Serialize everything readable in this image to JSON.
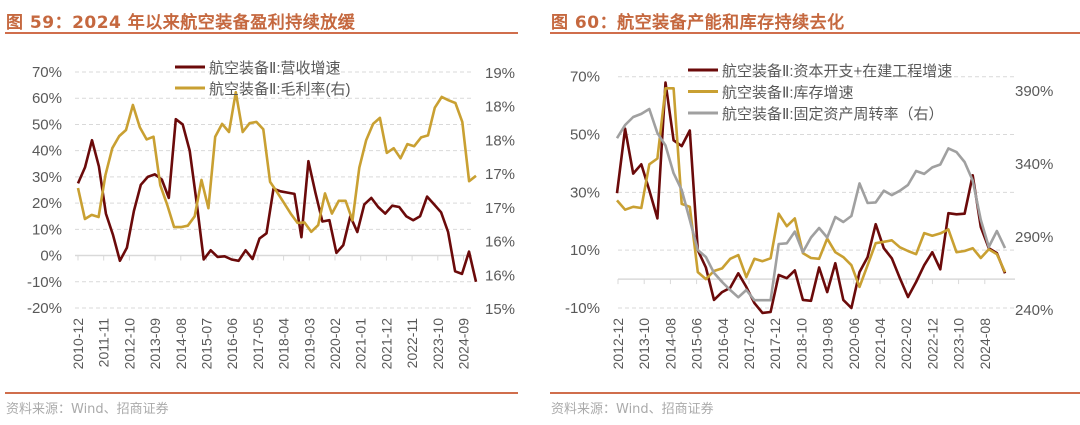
{
  "figures": [
    {
      "title": "图 59：2024 年以来航空装备盈利持续放缓",
      "source": "资料来源：Wind、招商证券"
    },
    {
      "title": "图 60：航空装备产能和库存持续去化",
      "source": "资料来源：Wind、招商证券"
    }
  ],
  "chart_data": [
    {
      "type": "line",
      "title": "图 59：2024 年以来航空装备盈利持续放缓",
      "x_tick_labels": [
        "2010-12",
        "2011-11",
        "2012-10",
        "2013-09",
        "2014-08",
        "2015-07",
        "2016-06",
        "2017-05",
        "2018-04",
        "2019-03",
        "2020-02",
        "2021-01",
        "2021-12",
        "2022-11",
        "2023-10",
        "2024-09"
      ],
      "y_left": {
        "range": [
          -20,
          70
        ],
        "ticks": [
          70,
          60,
          50,
          40,
          30,
          20,
          10,
          0,
          -10,
          -20
        ],
        "tick_labels": [
          "70%",
          "60%",
          "50%",
          "40%",
          "30%",
          "20%",
          "10%",
          "0%",
          "-10%",
          "-20%"
        ]
      },
      "y_right": {
        "range": [
          15.5,
          19
        ],
        "ticks": [
          19,
          18.5,
          18,
          17.5,
          17,
          16.5,
          16,
          15.5
        ],
        "tick_labels": [
          "19%",
          "18%",
          "18%",
          "17%",
          "17%",
          "16%",
          "16%",
          "15%"
        ]
      },
      "grid": true,
      "legend_position": "top-center",
      "series": [
        {
          "name": "航空装备Ⅱ:营收增速",
          "axis": "left",
          "color": "#6B0A0A",
          "values": [
            27.5,
            33.6,
            44,
            34,
            16,
            8,
            -2,
            3,
            17,
            27,
            30,
            31,
            29,
            22,
            52,
            50,
            40,
            20,
            -1.5,
            2,
            -0.5,
            -0.3,
            -1.5,
            -2,
            2,
            -1.3,
            6.5,
            8.5,
            25.5,
            24.5,
            24,
            23.5,
            7,
            36,
            24,
            13,
            13.5,
            1,
            4,
            15,
            9,
            19.5,
            22,
            18.5,
            16,
            19,
            18.5,
            15,
            13.5,
            15,
            22.5,
            19.5,
            16.5,
            9,
            -6,
            -7,
            1.5,
            -10
          ]
        },
        {
          "name": "航空装备Ⅱ:毛利率(右)",
          "axis": "right",
          "color": "#C9A032",
          "values": [
            17.28,
            16.82,
            16.88,
            16.85,
            17.47,
            17.87,
            18.05,
            18.14,
            18.51,
            18.18,
            18.0,
            18.04,
            17.32,
            17.03,
            16.7,
            16.7,
            16.72,
            16.86,
            17.4,
            16.98,
            18.04,
            18.23,
            18.11,
            18.7,
            18.11,
            18.24,
            18.26,
            18.15,
            17.37,
            17.22,
            17.06,
            16.9,
            16.76,
            16.77,
            16.63,
            16.73,
            17.2,
            16.9,
            17.09,
            17.09,
            16.8,
            17.58,
            17.99,
            18.23,
            18.32,
            17.8,
            17.87,
            17.72,
            17.93,
            17.9,
            18.03,
            18.06,
            18.47,
            18.63,
            18.58,
            18.54,
            18.26,
            17.38,
            17.46
          ]
        }
      ]
    },
    {
      "type": "line",
      "title": "图 60：航空装备产能和库存持续去化",
      "x_tick_labels": [
        "2012-12",
        "2013-10",
        "2014-08",
        "2015-06",
        "2016-04",
        "2017-02",
        "2017-12",
        "2018-10",
        "2019-08",
        "2020-06",
        "2021-04",
        "2022-02",
        "2022-12",
        "2023-10",
        "2024-08"
      ],
      "y_left": {
        "range": [
          -10,
          70
        ],
        "ticks": [
          70,
          50,
          30,
          10,
          -10
        ],
        "tick_labels": [
          "70%",
          "50%",
          "30%",
          "10%",
          "-10%"
        ]
      },
      "y_right": {
        "range": [
          240,
          390
        ],
        "ticks": [
          390,
          340,
          290,
          240
        ],
        "tick_labels": [
          "390%",
          "340%",
          "290%",
          "240%"
        ]
      },
      "grid": true,
      "legend_position": "top-center",
      "series": [
        {
          "name": "航空装备Ⅱ:资本开支+在建工程增速",
          "axis": "left",
          "color": "#6B0A0A",
          "values": [
            29.7,
            52,
            36.5,
            39.7,
            30.7,
            21,
            68,
            48,
            46,
            51.4,
            10,
            4,
            -7.2,
            -4.5,
            -3,
            2,
            -2.7,
            -8.3,
            -11.7,
            -11.4,
            1.4,
            0.3,
            3,
            -7.2,
            -7.5,
            4,
            -4.5,
            5.5,
            -7.2,
            -10,
            2.4,
            7.6,
            19,
            10.7,
            7.2,
            0.3,
            -6.2,
            -1,
            4.8,
            9.3,
            3.4,
            22.8,
            22.4,
            22.6,
            35.9,
            18,
            10.7,
            9,
            2
          ]
        },
        {
          "name": "航空装备Ⅱ:库存增速",
          "axis": "left",
          "color": "#C9A032",
          "values": [
            27.2,
            24,
            25,
            24.6,
            39.7,
            41.7,
            66,
            66,
            26,
            25,
            2.4,
            0,
            2.8,
            3.7,
            7,
            8.3,
            0.7,
            7,
            6.2,
            7.2,
            22.6,
            18.3,
            21,
            9,
            7.3,
            7,
            14,
            9.3,
            7.6,
            4.8,
            -2.7,
            4.8,
            12.4,
            12.9,
            13.4,
            11,
            9.7,
            8.6,
            15.9,
            15,
            15.8,
            17.2,
            9.3,
            9.7,
            10.7,
            7.3,
            10.3,
            8.6,
            2.4
          ]
        },
        {
          "name": "航空装备Ⅱ:固定资产周转率（右）",
          "axis": "right",
          "color": "#A0A0A0",
          "values": [
            357,
            366,
            371.5,
            373.6,
            377,
            360.5,
            352,
            333,
            321.5,
            301,
            280.4,
            275.6,
            264.7,
            258.5,
            253,
            248,
            253,
            246,
            246,
            246,
            284.5,
            285,
            293,
            279,
            289,
            295.5,
            289,
            303,
            299.6,
            303.7,
            326,
            312.6,
            313,
            321,
            318,
            321,
            325,
            334.5,
            332.5,
            337,
            339,
            350,
            347.5,
            340.7,
            328,
            301,
            282.5,
            293.4,
            281.7
          ]
        }
      ]
    }
  ]
}
